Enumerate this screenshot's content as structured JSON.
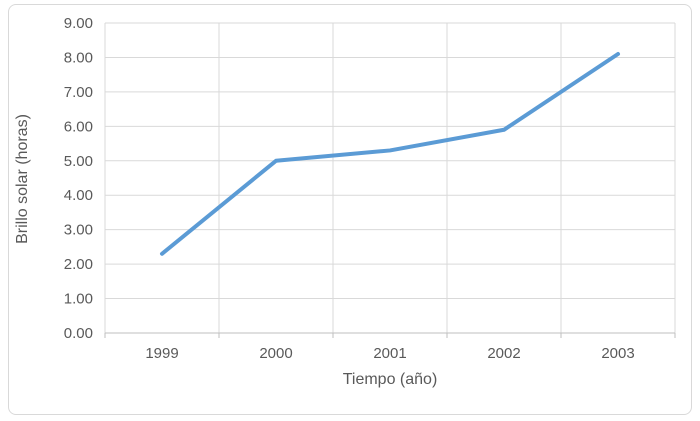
{
  "chart_data": {
    "type": "line",
    "xlabel": "Tiempo (año)",
    "ylabel": "Brillo solar (horas)",
    "categories": [
      "1999",
      "2000",
      "2001",
      "2002",
      "2003"
    ],
    "series": [
      {
        "values": [
          2.3,
          5.0,
          5.3,
          5.9,
          8.1
        ],
        "color": "#5B9BD5"
      }
    ],
    "ylim": [
      0,
      9
    ],
    "ytick_labels": [
      "0.00",
      "1.00",
      "2.00",
      "3.00",
      "4.00",
      "5.00",
      "6.00",
      "7.00",
      "8.00",
      "9.00"
    ],
    "grid": true,
    "legend": "none",
    "colors": {
      "line": "#5B9BD5",
      "gridline": "#D9D9D9",
      "axis_line": "#BFBFBF",
      "tick_mark": "#BFBFBF",
      "text": "#595959",
      "frame_border": "#D9D9D9",
      "background": "#FFFFFF"
    }
  }
}
